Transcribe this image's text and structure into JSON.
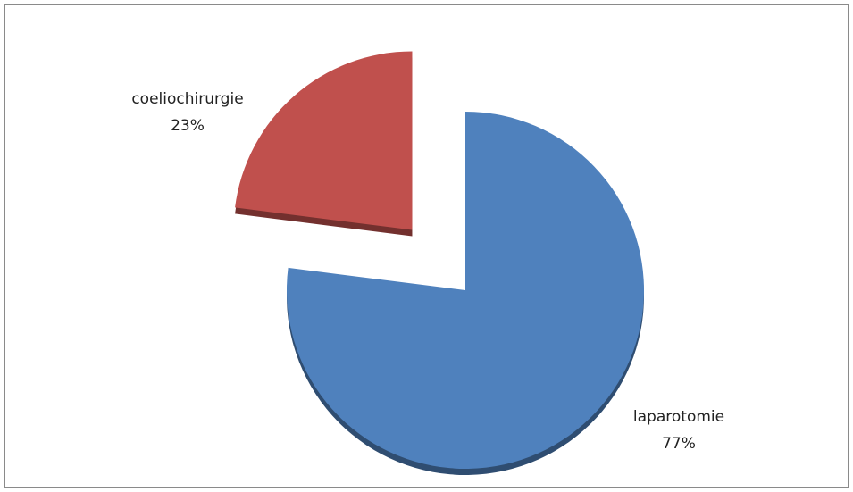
{
  "chart_data": {
    "type": "pie",
    "categories": [
      "laparotomie",
      "coeliochirurgie"
    ],
    "values": [
      77,
      23
    ],
    "value_labels": [
      "77%",
      "23%"
    ],
    "colors": [
      "#4f81bd",
      "#c0504d"
    ],
    "start_angle": 0,
    "direction": "clockwise",
    "exploded": [
      false,
      true
    ]
  }
}
